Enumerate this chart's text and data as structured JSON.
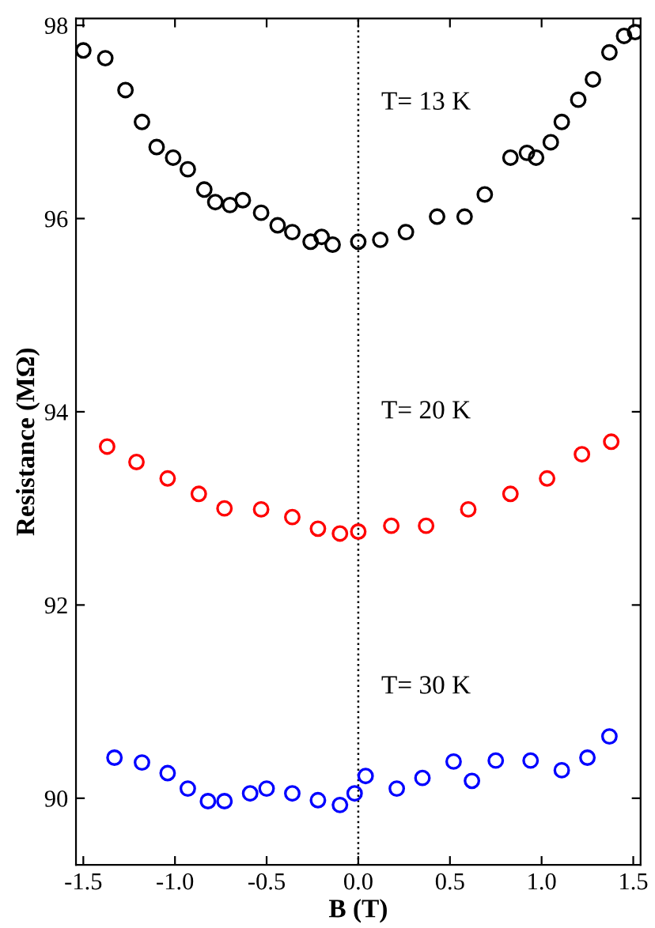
{
  "chart_data": {
    "type": "scatter",
    "xlabel": "B (T)",
    "ylabel": "Resistance (MΩ)",
    "annotations": [
      "T= 13 K",
      "T= 20 K",
      "T= 30 K"
    ],
    "xlim": [
      -1.54,
      1.54
    ],
    "ylim": [
      89.31,
      98.07
    ],
    "xticks": [
      {
        "value": -1.5,
        "label": "-1.5"
      },
      {
        "value": -1.0,
        "label": "-1.0"
      },
      {
        "value": -0.5,
        "label": "-0.5"
      },
      {
        "value": 0,
        "label": "0.0"
      },
      {
        "value": 0.5,
        "label": "0.5"
      },
      {
        "value": 1.0,
        "label": "1.0"
      },
      {
        "value": 1.5,
        "label": "1.5"
      }
    ],
    "yticks": [
      90,
      92,
      94,
      96,
      98
    ],
    "marker": "circle",
    "grid": false,
    "legend": false,
    "ref_lines": [
      {
        "axis": "x",
        "value": 0,
        "color": "#000000",
        "line_style": "dotted"
      }
    ],
    "series": [
      {
        "color": "#000000",
        "x": [
          -1.5,
          -1.38,
          -1.27,
          -1.18,
          -1.1,
          -1.01,
          -0.93,
          -0.84,
          -0.78,
          -0.7,
          -0.63,
          -0.53,
          -0.44,
          -0.36,
          -0.26,
          -0.2,
          -0.14,
          0.0,
          0.12,
          0.26,
          0.43,
          0.58,
          0.69,
          0.83,
          0.92,
          0.97,
          1.05,
          1.11,
          1.2,
          1.28,
          1.37,
          1.45,
          1.51
        ],
        "values": [
          97.74,
          97.66,
          97.33,
          97.0,
          96.74,
          96.63,
          96.51,
          96.3,
          96.17,
          96.14,
          96.19,
          96.06,
          95.93,
          95.86,
          95.76,
          95.81,
          95.73,
          95.76,
          95.78,
          95.86,
          96.02,
          96.02,
          96.25,
          96.63,
          96.68,
          96.63,
          96.79,
          97.0,
          97.23,
          97.44,
          97.72,
          97.89,
          97.93
        ]
      },
      {
        "color": "#ff0000",
        "x": [
          -1.37,
          -1.21,
          -1.04,
          -0.87,
          -0.73,
          -0.53,
          -0.36,
          -0.22,
          -0.1,
          0.0,
          0.18,
          0.37,
          0.6,
          0.83,
          1.03,
          1.22,
          1.38
        ],
        "values": [
          93.64,
          93.48,
          93.31,
          93.15,
          93.0,
          92.99,
          92.91,
          92.79,
          92.74,
          92.76,
          92.82,
          92.82,
          92.99,
          93.15,
          93.31,
          93.56,
          93.69
        ]
      },
      {
        "color": "#0000ff",
        "x": [
          -1.33,
          -1.18,
          -1.04,
          -0.93,
          -0.82,
          -0.73,
          -0.59,
          -0.5,
          -0.36,
          -0.22,
          -0.1,
          -0.02,
          0.04,
          0.21,
          0.35,
          0.52,
          0.62,
          0.75,
          0.94,
          1.11,
          1.25,
          1.37
        ],
        "values": [
          90.42,
          90.37,
          90.26,
          90.1,
          89.97,
          89.97,
          90.05,
          90.1,
          90.05,
          89.98,
          89.93,
          90.05,
          90.23,
          90.1,
          90.21,
          90.38,
          90.18,
          90.39,
          90.39,
          90.29,
          90.42,
          90.64
        ]
      }
    ]
  }
}
